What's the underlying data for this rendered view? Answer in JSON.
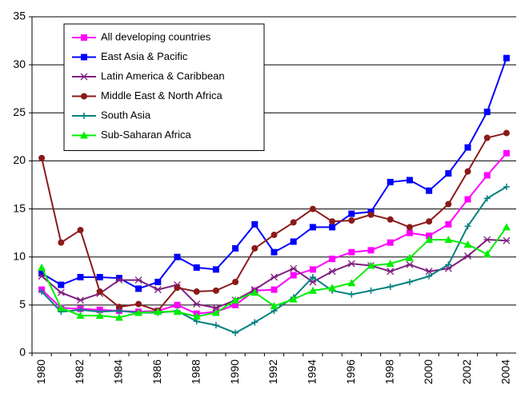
{
  "chart_data": {
    "type": "line",
    "categories": [
      "1980",
      null,
      "1982",
      null,
      "1984",
      null,
      "1986",
      null,
      "1988",
      null,
      "1990",
      null,
      "1992",
      null,
      "1994",
      null,
      "1996",
      null,
      "1998",
      null,
      "2000",
      null,
      "2002",
      null,
      "2004"
    ],
    "ylim": [
      0,
      35
    ],
    "yticks": [
      0,
      5,
      10,
      15,
      20,
      25,
      30,
      35
    ],
    "grid": true,
    "legend": "upper-left",
    "series": [
      {
        "name": "All developing countries",
        "color": "#ff00ff",
        "marker": "square",
        "values": [
          6.6,
          4.7,
          4.6,
          4.5,
          4.4,
          4.3,
          4.4,
          5.0,
          4.1,
          4.3,
          5.0,
          6.5,
          6.6,
          8.1,
          8.7,
          9.8,
          10.5,
          10.7,
          11.5,
          12.5,
          12.2,
          13.4,
          16.0,
          18.5,
          20.8
        ]
      },
      {
        "name": "East Asia & Pacific",
        "color": "#0000ff",
        "marker": "square",
        "values": [
          8.3,
          7.1,
          7.9,
          7.9,
          7.8,
          6.7,
          7.4,
          10.0,
          8.9,
          8.7,
          10.9,
          13.4,
          10.5,
          11.6,
          13.1,
          13.1,
          14.5,
          14.7,
          17.8,
          18.0,
          16.9,
          18.7,
          21.4,
          25.1,
          30.7
        ]
      },
      {
        "name": "Latin America & Caribbean",
        "color": "#7f1f7f",
        "marker": "star",
        "values": [
          8.0,
          6.3,
          5.5,
          6.2,
          7.6,
          7.6,
          6.6,
          7.1,
          5.1,
          4.7,
          5.5,
          6.6,
          7.9,
          8.8,
          7.4,
          8.5,
          9.3,
          9.1,
          8.5,
          9.2,
          8.5,
          8.8,
          10.1,
          11.8,
          11.7
        ]
      },
      {
        "name": "Middle East & North Africa",
        "color": "#8b1a1a",
        "marker": "circle",
        "values": [
          20.3,
          11.5,
          12.8,
          6.4,
          4.8,
          5.1,
          4.4,
          6.8,
          6.4,
          6.5,
          7.4,
          10.9,
          12.3,
          13.6,
          15.0,
          13.7,
          13.8,
          14.4,
          13.9,
          13.1,
          13.7,
          15.5,
          18.9,
          22.4,
          22.9
        ]
      },
      {
        "name": "South Asia",
        "color": "#008080",
        "marker": "plus",
        "values": [
          6.4,
          4.3,
          4.5,
          4.3,
          4.4,
          4.2,
          4.2,
          4.4,
          3.3,
          2.9,
          2.1,
          3.2,
          4.4,
          5.8,
          7.9,
          6.5,
          6.1,
          6.5,
          6.9,
          7.4,
          8.0,
          9.2,
          13.2,
          16.1,
          17.3
        ]
      },
      {
        "name": "Sub-Saharan Africa",
        "color": "#00ee00",
        "marker": "triangle",
        "values": [
          8.9,
          4.7,
          3.9,
          3.9,
          3.7,
          4.2,
          4.3,
          4.3,
          3.8,
          4.2,
          5.5,
          6.3,
          4.9,
          5.6,
          6.5,
          6.8,
          7.3,
          9.1,
          9.3,
          9.9,
          11.8,
          11.8,
          11.3,
          10.3,
          13.1
        ]
      }
    ]
  }
}
